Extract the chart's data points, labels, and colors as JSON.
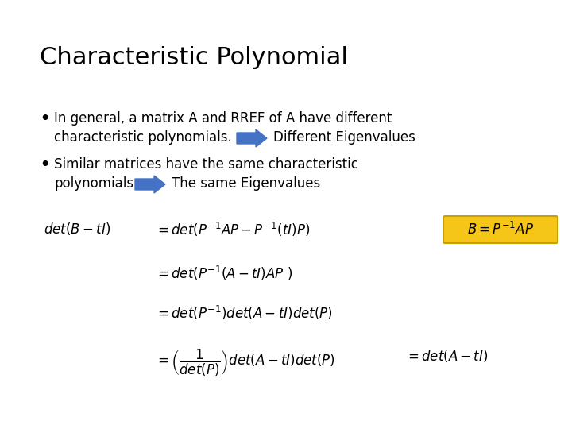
{
  "title": "Characteristic Polynomial",
  "title_fontsize": 22,
  "background_color": "#ffffff",
  "text_color": "#000000",
  "bullet1_line1": "In general, a matrix A and RREF of A have different",
  "bullet1_line2": "characteristic polynomials.",
  "bullet1_arrow_label": "Different Eigenvalues",
  "bullet2_line1": "Similar matrices have the same characteristic",
  "bullet2_line2": "polynomials",
  "bullet2_arrow_label": "The same Eigenvalues",
  "arrow_color": "#4472C4",
  "box_color": "#F5C518",
  "box_edge_color": "#C8A000",
  "body_fontsize": 12,
  "math_fontsize": 12
}
